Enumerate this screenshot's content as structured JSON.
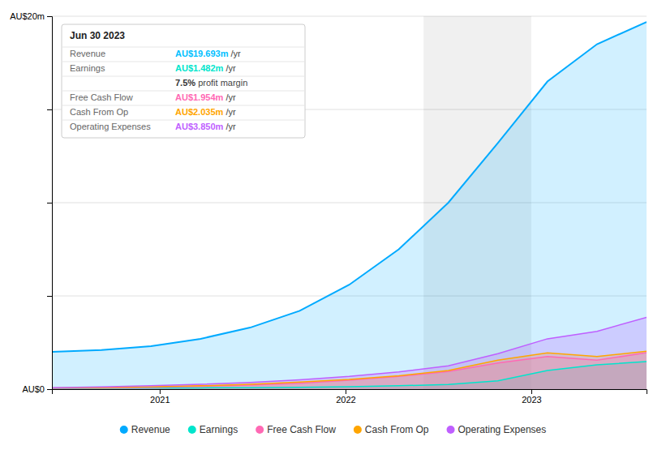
{
  "chart_data": {
    "type": "area",
    "x": [
      2020.42,
      2020.6866666666667,
      2020.9533333333334,
      2021.22,
      2021.4866666666667,
      2021.7533333333333,
      2022.02,
      2022.2866666666666,
      2022.5533333333333,
      2022.82,
      2023.0866666666666,
      2023.3533333333332,
      2023.62
    ],
    "series": [
      {
        "name": "Revenue",
        "color": "#00aaff",
        "values": [
          2.0,
          2.1,
          2.3,
          2.7,
          3.3,
          4.2,
          5.6,
          7.5,
          10.0,
          13.2,
          16.5,
          18.5,
          19.693
        ]
      },
      {
        "name": "Earnings",
        "color": "#00e5cc",
        "values": [
          0.04,
          0.05,
          0.06,
          0.07,
          0.08,
          0.1,
          0.13,
          0.18,
          0.25,
          0.45,
          1.0,
          1.3,
          1.482
        ]
      },
      {
        "name": "Free Cash Flow",
        "color": "#ff69b4",
        "values": [
          0.05,
          0.07,
          0.1,
          0.15,
          0.22,
          0.32,
          0.48,
          0.68,
          0.95,
          1.4,
          1.75,
          1.55,
          1.954
        ]
      },
      {
        "name": "Cash From Op",
        "color": "#ffa500",
        "values": [
          0.07,
          0.09,
          0.13,
          0.18,
          0.26,
          0.38,
          0.52,
          0.72,
          1.0,
          1.55,
          1.95,
          1.75,
          2.035
        ]
      },
      {
        "name": "Operating Expenses",
        "color": "#bf5fff",
        "values": [
          0.08,
          0.12,
          0.18,
          0.26,
          0.36,
          0.5,
          0.68,
          0.92,
          1.25,
          1.9,
          2.7,
          3.1,
          3.85
        ]
      }
    ],
    "xlim": [
      2020.42,
      2023.62
    ],
    "xticks": [
      2021,
      2022,
      2023
    ],
    "ylim": [
      0,
      20
    ],
    "yticks": [
      {
        "value": 0,
        "label": "AU$0"
      },
      {
        "value": 5,
        "label": null
      },
      {
        "value": 10,
        "label": null
      },
      {
        "value": 15,
        "label": null
      },
      {
        "value": 20,
        "label": "AU$20m"
      }
    ],
    "grid": "y",
    "legend": "bottom",
    "highlight_x": [
      2022.42,
      2023.0
    ],
    "annotation": {
      "title": "Jun 30 2023",
      "rows": [
        {
          "label": "Revenue",
          "value": "AU$19.693m",
          "suffix": " /yr",
          "color": "#00bfff"
        },
        {
          "label": "Earnings",
          "value": "AU$1.482m",
          "suffix": " /yr",
          "color": "#00e5cc"
        },
        {
          "value": "7.5%",
          "suffix": " profit margin",
          "color": "#333333"
        },
        {
          "label": "Free Cash Flow",
          "value": "AU$1.954m",
          "suffix": " /yr",
          "color": "#ff69b4"
        },
        {
          "label": "Cash From Op",
          "value": "AU$2.035m",
          "suffix": " /yr",
          "color": "#ffa500"
        },
        {
          "label": "Operating Expenses",
          "value": "AU$3.850m",
          "suffix": " /yr",
          "color": "#bf5fff"
        }
      ]
    }
  }
}
